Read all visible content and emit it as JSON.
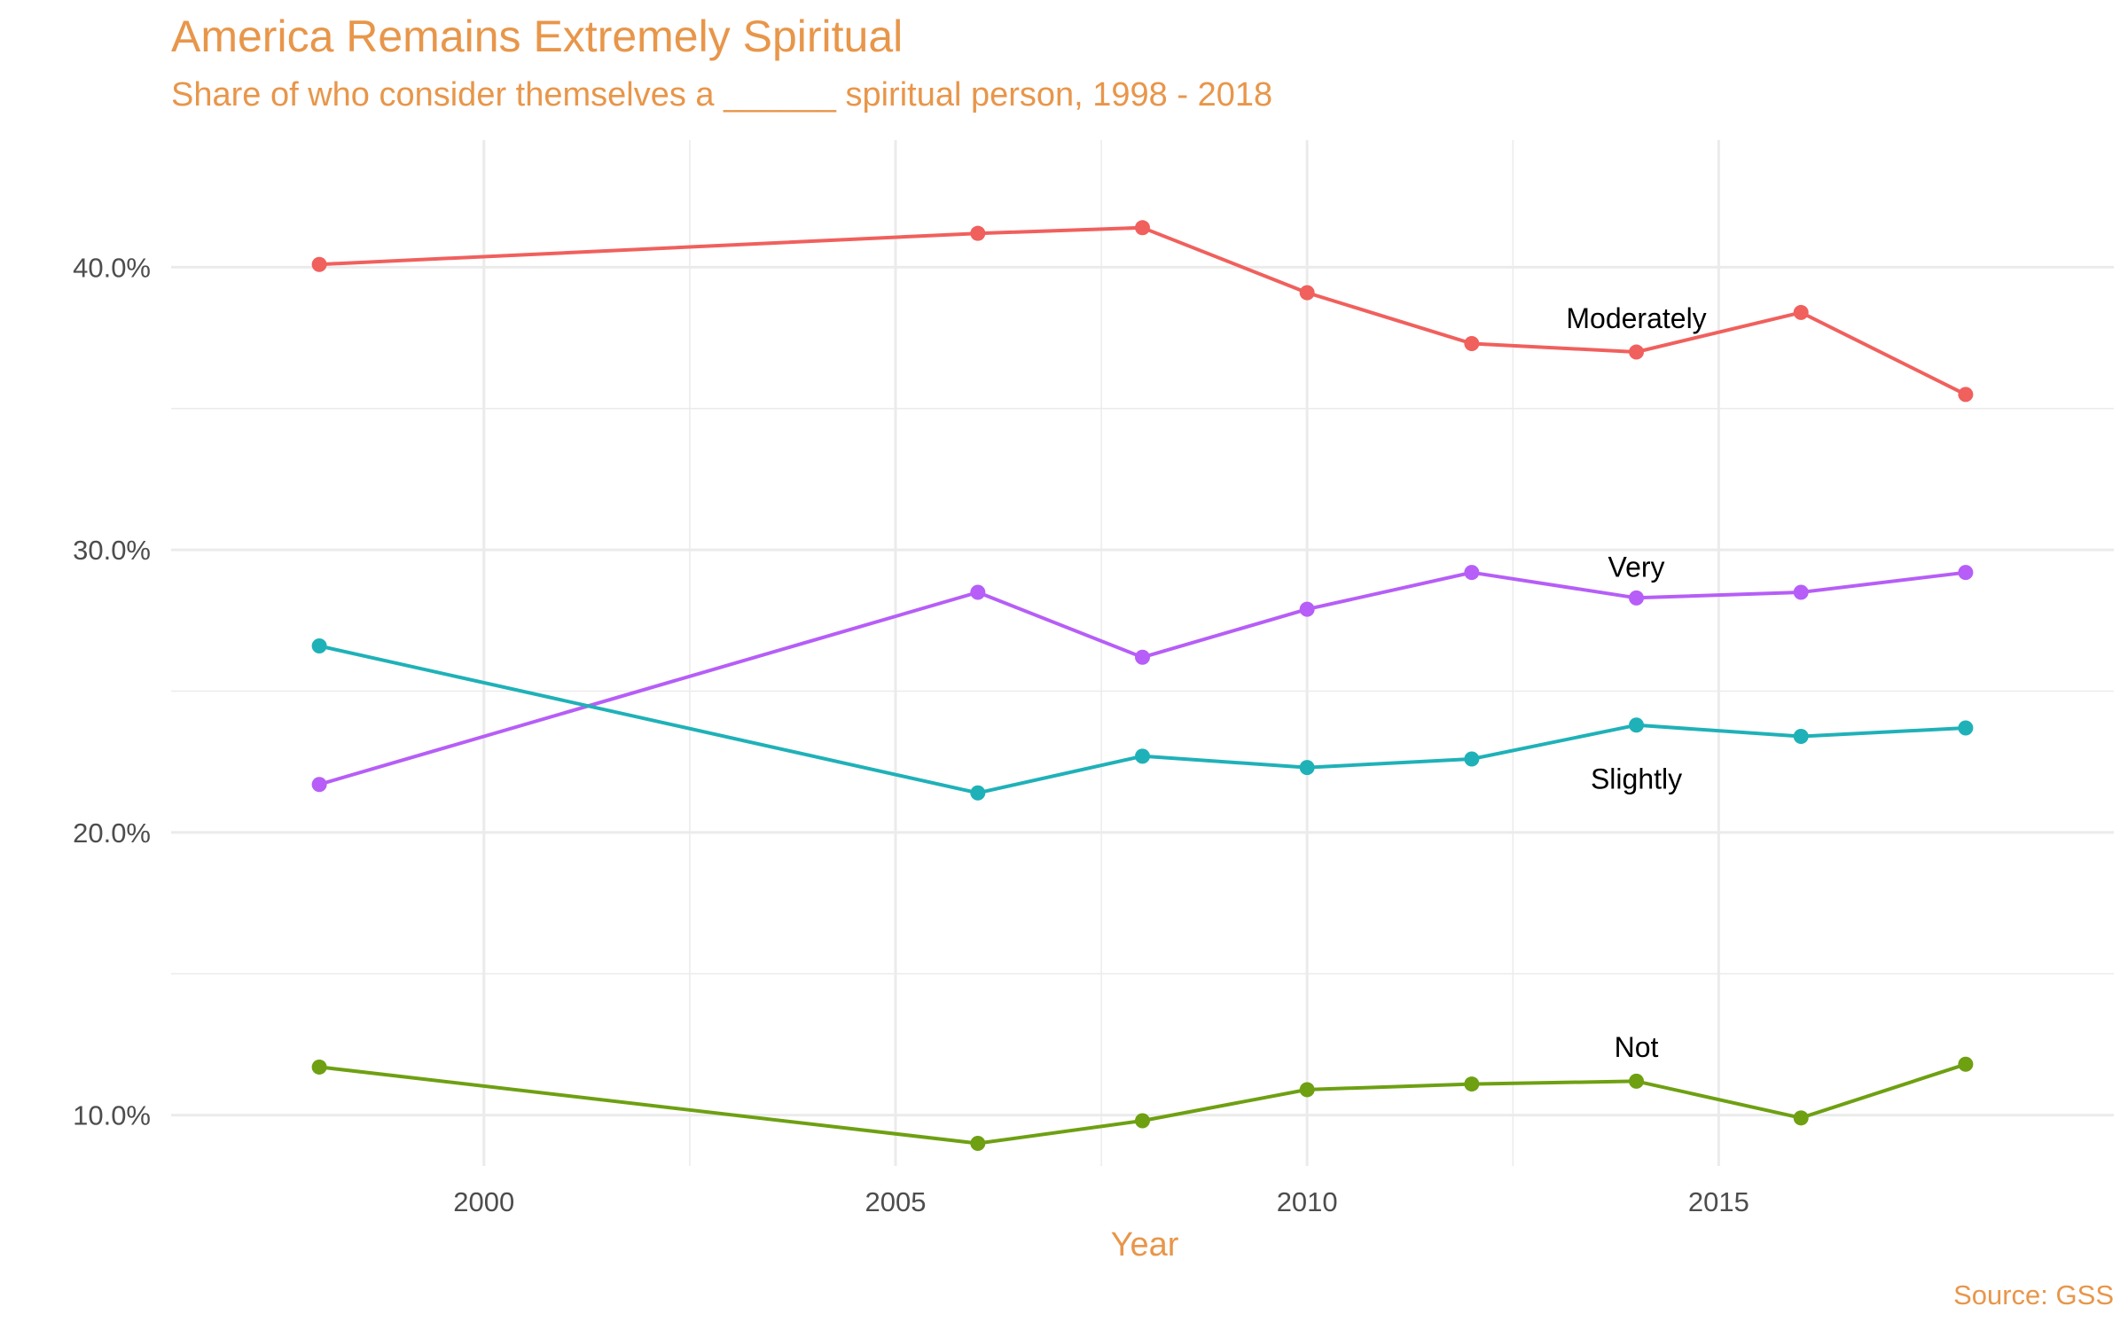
{
  "title": "America Remains Extremely Spiritual",
  "subtitle": "Share of who consider themselves a ______ spiritual person, 1998 - 2018",
  "caption": "Source: GSS",
  "colors": {
    "title": "#E8964A",
    "grid": "#ebebeb",
    "background": "#ffffff"
  },
  "chart_data": {
    "type": "line",
    "title": "America Remains Extremely Spiritual",
    "subtitle": "Share of who consider themselves a ______ spiritual person, 1998 - 2018",
    "xlabel": "Year",
    "ylabel": "",
    "x": [
      1998,
      2006,
      2008,
      2010,
      2012,
      2014,
      2016,
      2018
    ],
    "xlim": [
      1996.2,
      2019.8
    ],
    "ylim": [
      8.2,
      44.5
    ],
    "x_ticks": [
      2000,
      2005,
      2010,
      2015
    ],
    "x_tick_labels": [
      "2000",
      "2005",
      "2010",
      "2015"
    ],
    "y_ticks": [
      10,
      20,
      30,
      40
    ],
    "y_tick_labels": [
      "10.0%",
      "20.0%",
      "30.0%",
      "40.0%"
    ],
    "grid": true,
    "legend": "none (direct labels)",
    "series": [
      {
        "name": "Moderately",
        "color": "#F0605D",
        "values": [
          40.1,
          41.2,
          41.4,
          39.1,
          37.3,
          37.0,
          38.4,
          35.5
        ],
        "label_x": 2014,
        "label_y": 38.2
      },
      {
        "name": "Very",
        "color": "#B65EF7",
        "values": [
          21.7,
          28.5,
          26.2,
          27.9,
          29.2,
          28.3,
          28.5,
          29.2
        ],
        "label_x": 2014,
        "label_y": 29.4
      },
      {
        "name": "Slightly",
        "color": "#1FB1B8",
        "values": [
          26.6,
          21.4,
          22.7,
          22.3,
          22.6,
          23.8,
          23.4,
          23.7
        ],
        "label_x": 2014,
        "label_y": 21.9
      },
      {
        "name": "Not",
        "color": "#6EA012",
        "values": [
          11.7,
          9.0,
          9.8,
          10.9,
          11.1,
          11.2,
          9.9,
          11.8
        ],
        "label_x": 2014,
        "label_y": 12.4
      }
    ]
  }
}
